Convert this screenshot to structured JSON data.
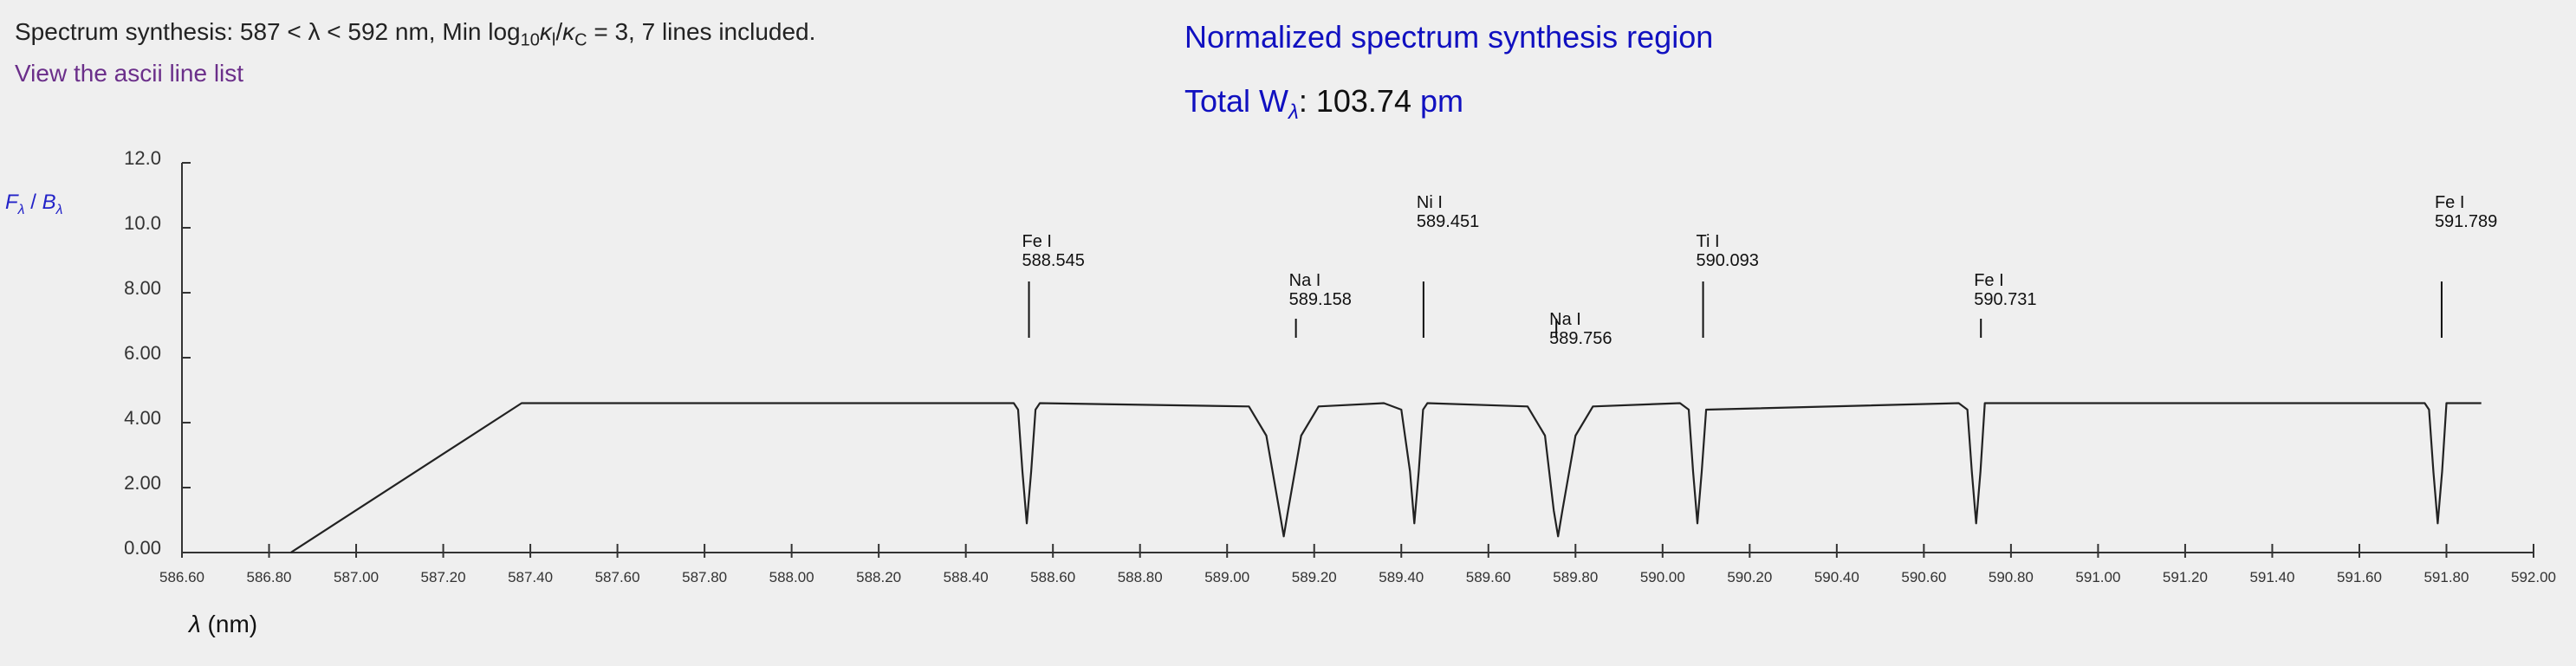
{
  "header": {
    "synthesis_prefix": "Spectrum synthesis: 587 < λ < 592 nm, Min log",
    "synthesis_sub": "10",
    "synthesis_kappa_l": "κ",
    "synthesis_kappa_l_sub": "l",
    "synthesis_slash": "/",
    "synthesis_kappa_c": "κ",
    "synthesis_kappa_c_sub": "C",
    "synthesis_suffix": " = 3, 7 lines included.",
    "ascii_link_label": "View the ascii line list",
    "region_title": "Normalized spectrum synthesis region",
    "total_w_label": "Total W",
    "total_w_sub": "λ",
    "total_w_colon": ": ",
    "total_w_value": "103.74",
    "total_w_unit": "pm"
  },
  "axes": {
    "y_label_f": "F",
    "y_label_f_sub": "λ",
    "y_label_sep": " / ",
    "y_label_b": "B",
    "y_label_b_sub": "λ",
    "x_label_lambda": "λ",
    "x_label_unit": " (nm)"
  },
  "chart_data": {
    "type": "line",
    "xlabel": "λ (nm)",
    "ylabel": "Fλ / Bλ",
    "xlim": [
      586.6,
      592.0
    ],
    "ylim": [
      0,
      12
    ],
    "x_ticks": [
      "586.60",
      "586.80",
      "587.00",
      "587.20",
      "587.40",
      "587.60",
      "587.80",
      "588.00",
      "588.20",
      "588.40",
      "588.60",
      "588.80",
      "589.00",
      "589.20",
      "589.40",
      "589.60",
      "589.80",
      "590.00",
      "590.20",
      "590.40",
      "590.60",
      "590.80",
      "591.00",
      "591.20",
      "591.40",
      "591.60",
      "591.80",
      "592.00"
    ],
    "y_ticks": [
      "0.00",
      "2.00",
      "4.00",
      "6.00",
      "8.00",
      "10.0",
      "12.0"
    ],
    "continuum": 4.6,
    "series": [
      {
        "x": [
          586.85,
          587.38,
          588.51,
          588.52,
          588.53,
          588.54,
          588.55,
          588.56,
          588.57,
          589.05,
          589.09,
          589.12,
          589.13,
          589.14,
          589.17,
          589.21,
          589.36,
          589.4,
          589.42,
          589.43,
          589.44,
          589.45,
          589.46,
          589.69,
          589.73,
          589.75,
          589.76,
          589.77,
          589.8,
          589.84,
          590.04,
          590.06,
          590.07,
          590.08,
          590.09,
          590.1,
          590.68,
          590.7,
          590.71,
          590.72,
          590.73,
          590.74,
          591.75,
          591.76,
          591.77,
          591.78,
          591.79,
          591.8,
          591.88
        ],
        "y": [
          0.0,
          4.6,
          4.6,
          4.4,
          2.5,
          0.9,
          2.5,
          4.4,
          4.6,
          4.5,
          3.6,
          1.3,
          0.5,
          1.3,
          3.6,
          4.5,
          4.6,
          4.4,
          2.5,
          0.9,
          2.5,
          4.4,
          4.6,
          4.5,
          3.6,
          1.3,
          0.5,
          1.3,
          3.6,
          4.5,
          4.6,
          4.4,
          2.5,
          0.9,
          2.5,
          4.4,
          4.6,
          4.4,
          2.5,
          0.9,
          2.5,
          4.6,
          4.6,
          4.4,
          2.5,
          0.9,
          2.5,
          4.6,
          4.6
        ]
      }
    ],
    "lines": [
      {
        "species": "Fe I",
        "wavelength": "588.545",
        "x": 588.545,
        "strength": "strong"
      },
      {
        "species": "Na I",
        "wavelength": "589.158",
        "x": 589.158,
        "strength": "weak"
      },
      {
        "species": "Ni I",
        "wavelength": "589.451",
        "x": 589.451,
        "strength": "strong"
      },
      {
        "species": "Na I",
        "wavelength": "589.756",
        "x": 589.756,
        "strength": "weak"
      },
      {
        "species": "Ti I",
        "wavelength": "590.093",
        "x": 590.093,
        "strength": "strong"
      },
      {
        "species": "Fe I",
        "wavelength": "590.731",
        "x": 590.731,
        "strength": "weak"
      },
      {
        "species": "Fe I",
        "wavelength": "591.789",
        "x": 591.789,
        "strength": "strong"
      }
    ]
  },
  "colors": {
    "text_blue": "#1010c0",
    "link_purple": "#6b2f8a",
    "axis": "#333333",
    "tick_label": "#555555",
    "line": "#222222"
  }
}
